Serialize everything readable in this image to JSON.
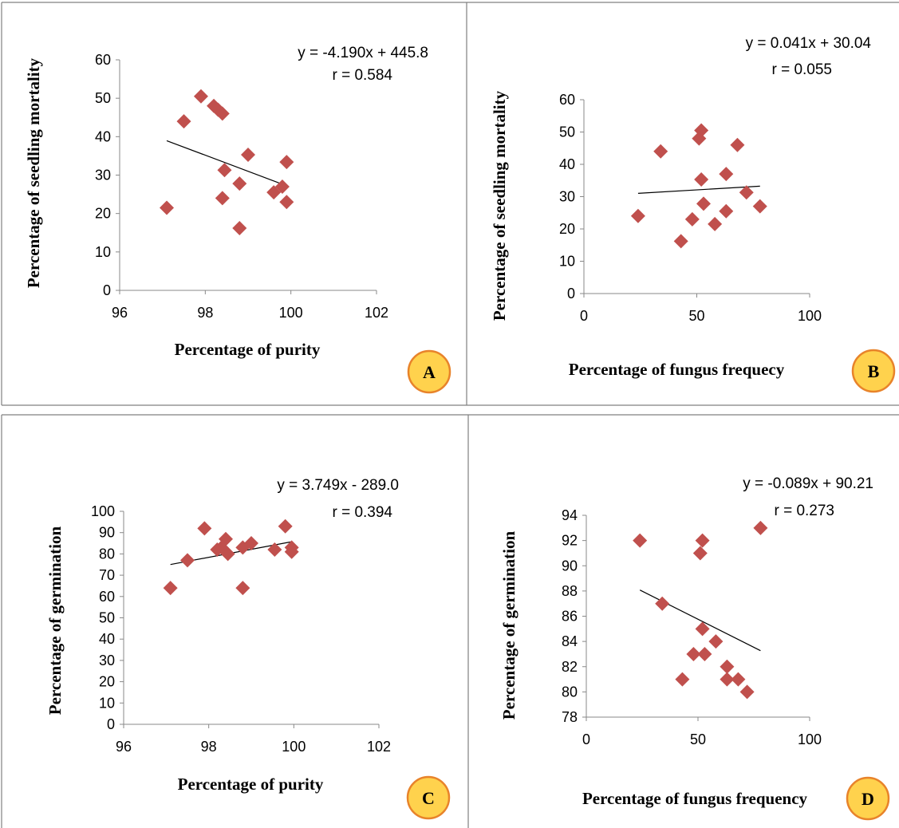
{
  "chart_data": [
    {
      "type": "scatter",
      "panel": "A",
      "xlabel": "Percentage of purity",
      "ylabel": "Percentage of seedling mortality",
      "xlim": [
        96,
        102
      ],
      "ylim": [
        0,
        60
      ],
      "xticks": [
        96,
        98,
        100,
        102
      ],
      "yticks": [
        0,
        10,
        20,
        30,
        40,
        50,
        60
      ],
      "trendline": {
        "slope": -4.19,
        "intercept": 445.8,
        "x_range": [
          97.1,
          99.9
        ]
      },
      "annotations": [
        "y = -4.190x + 445.8",
        "r = 0.584"
      ],
      "points": [
        [
          97.1,
          21.5
        ],
        [
          97.5,
          44
        ],
        [
          97.9,
          50.5
        ],
        [
          98.2,
          48
        ],
        [
          98.3,
          47
        ],
        [
          98.4,
          46
        ],
        [
          98.4,
          24
        ],
        [
          98.45,
          31.3
        ],
        [
          98.8,
          27.8
        ],
        [
          98.8,
          16.2
        ],
        [
          99.0,
          35.3
        ],
        [
          99.6,
          25.5
        ],
        [
          99.8,
          27
        ],
        [
          99.9,
          33.4
        ],
        [
          99.9,
          23
        ]
      ]
    },
    {
      "type": "scatter",
      "panel": "B",
      "xlabel": "Percentage of fungus frequecy",
      "ylabel": "Percentage of seedling mortality",
      "xlim": [
        0,
        100
      ],
      "ylim": [
        0,
        60
      ],
      "xticks": [
        0,
        50,
        100
      ],
      "yticks": [
        0,
        10,
        20,
        30,
        40,
        50,
        60
      ],
      "trendline": {
        "slope": 0.041,
        "intercept": 30.04,
        "x_range": [
          24,
          78
        ]
      },
      "annotations": [
        "y = 0.041x + 30.04",
        "r = 0.055"
      ],
      "points": [
        [
          24,
          24
        ],
        [
          34,
          44
        ],
        [
          43,
          16.2
        ],
        [
          48,
          23
        ],
        [
          51,
          48
        ],
        [
          52,
          50.5
        ],
        [
          52,
          35.3
        ],
        [
          53,
          27.8
        ],
        [
          58,
          21.5
        ],
        [
          63,
          37
        ],
        [
          63,
          25.5
        ],
        [
          68,
          46
        ],
        [
          72,
          31.3
        ],
        [
          78,
          27
        ]
      ]
    },
    {
      "type": "scatter",
      "panel": "C",
      "xlabel": "Percentage of purity",
      "ylabel": "Percentage of germination",
      "xlim": [
        96,
        102
      ],
      "ylim": [
        0,
        100
      ],
      "xticks": [
        96,
        98,
        100,
        102
      ],
      "yticks": [
        0,
        10,
        20,
        30,
        40,
        50,
        60,
        70,
        80,
        90,
        100
      ],
      "trendline": {
        "slope": 3.749,
        "intercept": -289.0,
        "x_range": [
          97.1,
          99.95
        ]
      },
      "annotations": [
        "y = 3.749x - 289.0",
        "r = 0.394"
      ],
      "points": [
        [
          97.1,
          64
        ],
        [
          97.5,
          77
        ],
        [
          97.9,
          92
        ],
        [
          98.2,
          82
        ],
        [
          98.3,
          83
        ],
        [
          98.4,
          87
        ],
        [
          98.45,
          80
        ],
        [
          98.8,
          83
        ],
        [
          98.8,
          64
        ],
        [
          99.0,
          85
        ],
        [
          99.55,
          82
        ],
        [
          99.8,
          93
        ],
        [
          99.95,
          81
        ],
        [
          99.95,
          83
        ]
      ]
    },
    {
      "type": "scatter",
      "panel": "D",
      "xlabel": "Percentage of fungus frequency",
      "ylabel": "Percentage of germination",
      "xlim": [
        0,
        100
      ],
      "ylim": [
        78,
        94
      ],
      "xticks": [
        0,
        50,
        100
      ],
      "yticks": [
        78,
        80,
        82,
        84,
        86,
        88,
        90,
        92,
        94
      ],
      "trendline": {
        "slope": -0.089,
        "intercept": 90.21,
        "x_range": [
          24,
          78
        ]
      },
      "annotations": [
        "y = -0.089x + 90.21",
        "r = 0.273"
      ],
      "points": [
        [
          24,
          92
        ],
        [
          34,
          87
        ],
        [
          43,
          81
        ],
        [
          48,
          83
        ],
        [
          51,
          91
        ],
        [
          52,
          92
        ],
        [
          52,
          85
        ],
        [
          53,
          83
        ],
        [
          58,
          84
        ],
        [
          63,
          82
        ],
        [
          63,
          81
        ],
        [
          68,
          81
        ],
        [
          72,
          80
        ],
        [
          78,
          93
        ]
      ]
    }
  ],
  "marker_color": "#C0504D",
  "badge_fill": "#FFD24D",
  "badge_stroke": "#E8832A"
}
